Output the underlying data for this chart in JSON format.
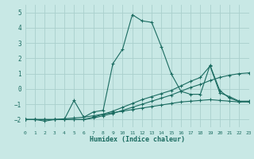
{
  "xlabel": "Humidex (Indice chaleur)",
  "xlim": [
    0,
    23
  ],
  "ylim": [
    -2.5,
    5.5
  ],
  "yticks": [
    -2,
    -1,
    0,
    1,
    2,
    3,
    4,
    5
  ],
  "xticks": [
    0,
    1,
    2,
    3,
    4,
    5,
    6,
    7,
    8,
    9,
    10,
    11,
    12,
    13,
    14,
    15,
    16,
    17,
    18,
    19,
    20,
    21,
    22,
    23
  ],
  "bg_color": "#c8e8e5",
  "grid_color": "#aacfcc",
  "line_color": "#1a6b60",
  "lines": [
    {
      "x": [
        0,
        1,
        2,
        3,
        4,
        5,
        6,
        7,
        8,
        9,
        10,
        11,
        12,
        13,
        14,
        15,
        16,
        17,
        18,
        19,
        20,
        21,
        22,
        23
      ],
      "y": [
        -2.0,
        -2.0,
        -2.1,
        -2.0,
        -1.95,
        -1.9,
        -1.85,
        -1.75,
        -1.65,
        -1.55,
        -1.45,
        -1.35,
        -1.25,
        -1.15,
        -1.05,
        -0.95,
        -0.85,
        -0.8,
        -0.75,
        -0.7,
        -0.75,
        -0.8,
        -0.85,
        -0.85
      ]
    },
    {
      "x": [
        0,
        1,
        2,
        3,
        4,
        5,
        6,
        7,
        8,
        9,
        10,
        11,
        12,
        13,
        14,
        15,
        16,
        17,
        18,
        19,
        20,
        21,
        22,
        23
      ],
      "y": [
        -2.0,
        -2.0,
        -2.0,
        -2.0,
        -2.0,
        -2.0,
        -2.0,
        -1.9,
        -1.75,
        -1.6,
        -1.4,
        -1.2,
        -1.0,
        -0.8,
        -0.6,
        -0.4,
        -0.15,
        0.1,
        0.3,
        0.55,
        0.75,
        0.9,
        1.0,
        1.05
      ]
    },
    {
      "x": [
        0,
        1,
        2,
        3,
        4,
        5,
        6,
        7,
        8,
        9,
        10,
        11,
        12,
        13,
        14,
        15,
        16,
        17,
        18,
        19,
        20,
        21,
        22,
        23
      ],
      "y": [
        -2.0,
        -2.0,
        -2.0,
        -2.0,
        -2.0,
        -0.75,
        -1.85,
        -1.5,
        -1.4,
        1.65,
        2.6,
        4.85,
        4.45,
        4.35,
        2.75,
        1.0,
        -0.15,
        -0.35,
        -0.35,
        1.55,
        -0.1,
        -0.6,
        -0.82,
        -0.82
      ]
    },
    {
      "x": [
        0,
        1,
        2,
        3,
        4,
        5,
        6,
        7,
        8,
        9,
        10,
        11,
        12,
        13,
        14,
        15,
        16,
        17,
        18,
        19,
        20,
        21,
        22,
        23
      ],
      "y": [
        -2.0,
        -2.0,
        -2.0,
        -2.0,
        -2.0,
        -2.0,
        -2.0,
        -1.85,
        -1.65,
        -1.45,
        -1.2,
        -0.95,
        -0.7,
        -0.5,
        -0.3,
        -0.1,
        0.2,
        0.5,
        0.75,
        1.5,
        -0.25,
        -0.5,
        -0.8,
        -0.8
      ]
    }
  ]
}
